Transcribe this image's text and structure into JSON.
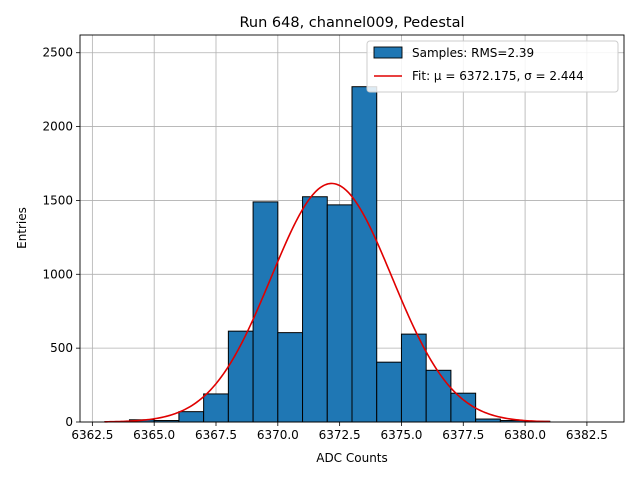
{
  "chart_data": {
    "type": "bar",
    "title": "Run 648, channel009, Pedestal",
    "xlabel": "ADC Counts",
    "ylabel": "Entries",
    "xlim": [
      6362.0,
      6384.0
    ],
    "ylim": [
      0,
      2620
    ],
    "grid": true,
    "legend_position": "top-right",
    "x_ticks": [
      "6362.5",
      "6365.0",
      "6367.5",
      "6370.0",
      "6372.5",
      "6375.0",
      "6377.5",
      "6380.0",
      "6382.5"
    ],
    "y_ticks": [
      "0",
      "500",
      "1000",
      "1500",
      "2000",
      "2500"
    ],
    "bins": [
      {
        "x0": 6363,
        "x1": 6364,
        "value": 2
      },
      {
        "x0": 6364,
        "x1": 6365,
        "value": 15
      },
      {
        "x0": 6365,
        "x1": 6366,
        "value": 10
      },
      {
        "x0": 6366,
        "x1": 6367,
        "value": 70
      },
      {
        "x0": 6367,
        "x1": 6368,
        "value": 190
      },
      {
        "x0": 6368,
        "x1": 6369,
        "value": 615
      },
      {
        "x0": 6369,
        "x1": 6370,
        "value": 1490
      },
      {
        "x0": 6370,
        "x1": 6371,
        "value": 605
      },
      {
        "x0": 6371,
        "x1": 6372,
        "value": 1525
      },
      {
        "x0": 6372,
        "x1": 6373,
        "value": 1470
      },
      {
        "x0": 6373,
        "x1": 6374,
        "value": 2270
      },
      {
        "x0": 6374,
        "x1": 6375,
        "value": 405
      },
      {
        "x0": 6375,
        "x1": 6376,
        "value": 595
      },
      {
        "x0": 6376,
        "x1": 6377,
        "value": 350
      },
      {
        "x0": 6377,
        "x1": 6378,
        "value": 195
      },
      {
        "x0": 6378,
        "x1": 6379,
        "value": 20
      },
      {
        "x0": 6379,
        "x1": 6380,
        "value": 10
      },
      {
        "x0": 6380,
        "x1": 6381,
        "value": 5
      }
    ],
    "fit": {
      "mu": 6372.175,
      "sigma": 2.444,
      "amplitude": 1615,
      "x_range": [
        6363,
        6381
      ]
    },
    "series": [
      {
        "name": "Samples: RMS=2.39",
        "color": "#1f77b4"
      },
      {
        "name": "Fit: μ = 6372.175, σ = 2.444",
        "color": "#e00000"
      }
    ]
  }
}
